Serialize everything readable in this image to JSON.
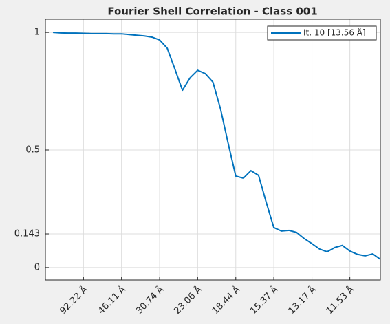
{
  "chart_data": {
    "type": "line",
    "title": "Fourier Shell Correlation - Class 001",
    "x": [
      0.00217,
      0.00434,
      0.00651,
      0.00867,
      0.01084,
      0.01301,
      0.01518,
      0.01735,
      0.01952,
      0.02169,
      0.02386,
      0.02602,
      0.02819,
      0.03036,
      0.03253,
      0.0347,
      0.03687,
      0.03904,
      0.04121,
      0.04337,
      0.04554,
      0.04771,
      0.04988,
      0.05205,
      0.05422,
      0.05639,
      0.05855,
      0.06072,
      0.06289,
      0.06506,
      0.06723,
      0.0694,
      0.07157,
      0.07374,
      0.0759,
      0.07807,
      0.08024,
      0.08241,
      0.08458,
      0.08675,
      0.08892,
      0.09109,
      0.09325,
      0.09542
    ],
    "series": [
      {
        "name": "It. 10 [13.56 Å]",
        "color": "#0072bd",
        "values": [
          1.0,
          0.998,
          0.997,
          0.997,
          0.996,
          0.995,
          0.995,
          0.995,
          0.994,
          0.994,
          0.991,
          0.988,
          0.985,
          0.98,
          0.968,
          0.933,
          0.845,
          0.754,
          0.807,
          0.839,
          0.825,
          0.789,
          0.675,
          0.529,
          0.389,
          0.38,
          0.412,
          0.392,
          0.278,
          0.17,
          0.155,
          0.158,
          0.149,
          0.123,
          0.102,
          0.079,
          0.067,
          0.085,
          0.094,
          0.07,
          0.056,
          0.05,
          0.058,
          0.035
        ]
      }
    ],
    "xlim": [
      0,
      0.09542
    ],
    "xticks": [
      {
        "value": 0.010844,
        "label": "92.22 Å"
      },
      {
        "value": 0.021687,
        "label": "46.11 Å"
      },
      {
        "value": 0.032531,
        "label": "30.74 Å"
      },
      {
        "value": 0.043365,
        "label": "23.06 Å"
      },
      {
        "value": 0.05423,
        "label": "18.44 Å"
      },
      {
        "value": 0.065062,
        "label": "15.37 Å"
      },
      {
        "value": 0.07593,
        "label": "13.17 Å"
      },
      {
        "value": 0.08673,
        "label": "11.53 Å"
      }
    ],
    "ylim": [
      -0.053,
      1.056
    ],
    "yticks": [
      0,
      0.143,
      0.5,
      1
    ],
    "grid": true,
    "legend": "northeast"
  }
}
